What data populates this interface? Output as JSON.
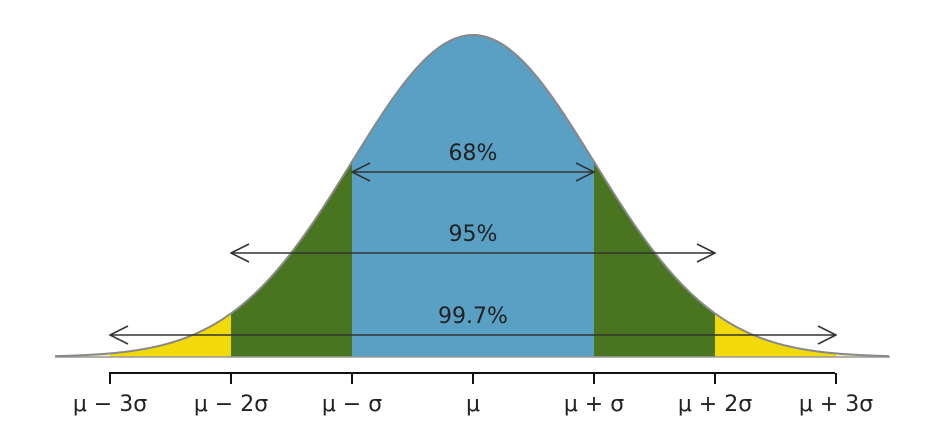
{
  "axis_labels": [
    "μ − 3σ",
    "μ − 2σ",
    "μ − σ",
    "μ",
    "μ + σ",
    "μ + 2σ",
    "μ + 3σ"
  ],
  "annotations": [
    "68%",
    "95%",
    "99.7%"
  ]
}
